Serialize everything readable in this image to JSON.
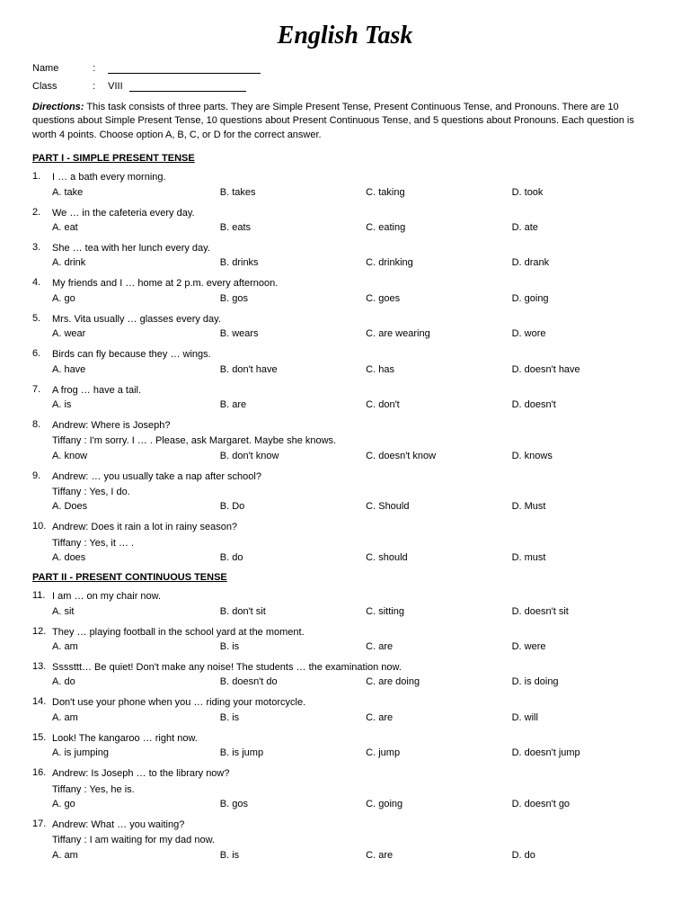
{
  "title": "English Task",
  "fields": {
    "name_label": "Name",
    "class_label": "Class",
    "class_value": "VIII"
  },
  "directions_label": "Directions:",
  "directions_text": " This task consists of three parts. They are Simple Present Tense, Present Continuous Tense, and Pronouns. There are 10 questions about Simple Present Tense, 10 questions about Present Continuous Tense, and 5 questions about Pronouns. Each question is worth 4 points. Choose option A, B, C, or D for the correct answer.",
  "parts": [
    {
      "heading": "PART I - SIMPLE PRESENT TENSE",
      "questions": [
        {
          "num": "1.",
          "lines": [
            "I … a bath every morning."
          ],
          "a": "A. take",
          "b": "B. takes",
          "c": "C. taking",
          "d": "D. took"
        },
        {
          "num": "2.",
          "lines": [
            "We … in the cafeteria every day."
          ],
          "a": "A. eat",
          "b": "B. eats",
          "c": "C. eating",
          "d": "D. ate"
        },
        {
          "num": "3.",
          "lines": [
            "She … tea with her lunch every day."
          ],
          "a": "A. drink",
          "b": "B. drinks",
          "c": "C. drinking",
          "d": "D. drank"
        },
        {
          "num": "4.",
          "lines": [
            "My friends and I … home at 2 p.m. every afternoon."
          ],
          "a": "A. go",
          "b": "B. gos",
          "c": "C. goes",
          "d": "D. going"
        },
        {
          "num": "5.",
          "lines": [
            "Mrs. Vita usually … glasses every day."
          ],
          "a": "A. wear",
          "b": "B. wears",
          "c": "C. are wearing",
          "d": "D. wore"
        },
        {
          "num": "6.",
          "lines": [
            "Birds can fly because they … wings."
          ],
          "a": "A. have",
          "b": "B. don't have",
          "c": "C. has",
          "d": "D. doesn't have"
        },
        {
          "num": "7.",
          "lines": [
            "A frog … have a tail."
          ],
          "a": "A. is",
          "b": "B. are",
          "c": "C. don't",
          "d": "D. doesn't"
        },
        {
          "num": "8.",
          "lines": [
            "Andrew: Where is Joseph?",
            "Tiffany : I'm sorry. I … . Please, ask Margaret. Maybe she knows."
          ],
          "a": "A. know",
          "b": "B. don't know",
          "c": "C. doesn't know",
          "d": "D. knows"
        },
        {
          "num": "9.",
          "lines": [
            "Andrew: … you usually take a nap after school?",
            "Tiffany : Yes, I do."
          ],
          "a": "A. Does",
          "b": "B. Do",
          "c": "C. Should",
          "d": "D. Must"
        },
        {
          "num": "10.",
          "lines": [
            "Andrew: Does it rain a lot in rainy season?",
            "Tiffany : Yes, it … ."
          ],
          "a": "A. does",
          "b": "B. do",
          "c": "C. should",
          "d": "D. must"
        }
      ]
    },
    {
      "heading": "PART II - PRESENT CONTINUOUS TENSE",
      "questions": [
        {
          "num": "11.",
          "lines": [
            "I am … on my chair now."
          ],
          "a": "A. sit",
          "b": "B. don't sit",
          "c": "C. sitting",
          "d": "D. doesn't sit"
        },
        {
          "num": "12.",
          "lines": [
            "They … playing football in the school yard at the moment."
          ],
          "a": "A. am",
          "b": "B. is",
          "c": "C. are",
          "d": "D. were"
        },
        {
          "num": "13.",
          "lines": [
            "Ssssttt… Be quiet! Don't make any noise! The students … the examination now."
          ],
          "a": "A. do",
          "b": "B. doesn't do",
          "c": "C. are doing",
          "d": "D. is doing"
        },
        {
          "num": "14.",
          "lines": [
            "Don't use your phone when you … riding your motorcycle."
          ],
          "a": "A. am",
          "b": "B. is",
          "c": "C. are",
          "d": "D. will"
        },
        {
          "num": "15.",
          "lines": [
            "Look! The kangaroo … right now."
          ],
          "a": "A. is jumping",
          "b": "B. is jump",
          "c": "C. jump",
          "d": "D. doesn't jump"
        },
        {
          "num": "16.",
          "lines": [
            "Andrew: Is Joseph … to the library now?",
            "Tiffany : Yes, he is."
          ],
          "a": "A. go",
          "b": "B. gos",
          "c": "C. going",
          "d": "D. doesn't go"
        },
        {
          "num": "17.",
          "lines": [
            "Andrew: What … you waiting?",
            "Tiffany : I am waiting for my dad now."
          ],
          "a": "A. am",
          "b": "B. is",
          "c": "C. are",
          "d": "D. do"
        }
      ]
    }
  ]
}
